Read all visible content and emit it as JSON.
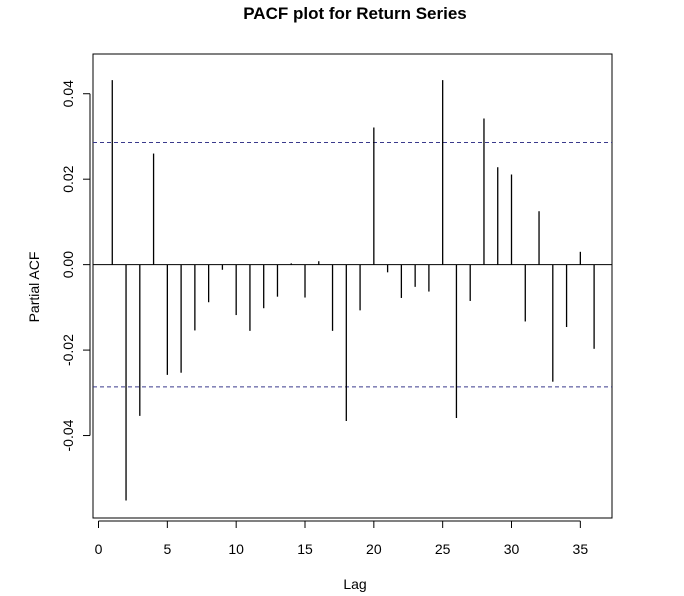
{
  "chart_data": {
    "type": "bar",
    "title": "PACF plot for Return Series",
    "xlabel": "Lag",
    "ylabel": "Partial ACF",
    "x": [
      1,
      2,
      3,
      4,
      5,
      6,
      7,
      8,
      9,
      10,
      11,
      12,
      13,
      14,
      15,
      16,
      17,
      18,
      19,
      20,
      21,
      22,
      23,
      24,
      25,
      26,
      27,
      28,
      29,
      30,
      31,
      32,
      33,
      34,
      35,
      36
    ],
    "values": [
      0.0432,
      -0.0552,
      -0.0354,
      0.026,
      -0.0258,
      -0.0253,
      -0.0154,
      -0.0088,
      -0.0012,
      -0.0118,
      -0.0155,
      -0.0102,
      -0.0075,
      0.0003,
      -0.0077,
      0.0008,
      -0.0155,
      -0.0366,
      -0.0107,
      0.0321,
      -0.0018,
      -0.0078,
      -0.0052,
      -0.0063,
      0.0432,
      -0.0359,
      -0.0085,
      0.0342,
      0.0228,
      0.0211,
      -0.0133,
      0.0125,
      -0.0274,
      -0.0146,
      0.003,
      -0.0197
    ],
    "confidence_bounds": [
      0.0286,
      -0.0286
    ],
    "xlim": [
      -0.4,
      37.3
    ],
    "ylim": [
      -0.0593,
      0.0493
    ],
    "xticks": [
      0,
      5,
      10,
      15,
      20,
      25,
      30,
      35
    ],
    "yticks": [
      -0.04,
      -0.02,
      0.0,
      0.02,
      0.04
    ],
    "xtick_labels": [
      "0",
      "5",
      "10",
      "15",
      "20",
      "25",
      "30",
      "35"
    ],
    "ytick_labels": [
      "-0.04",
      "-0.02",
      "0.00",
      "0.02",
      "0.04"
    ],
    "colors": {
      "bars": "#000000",
      "bounds": "#3a3a8c",
      "zero_line": "#000000",
      "frame": "#000000"
    },
    "grid": false
  }
}
